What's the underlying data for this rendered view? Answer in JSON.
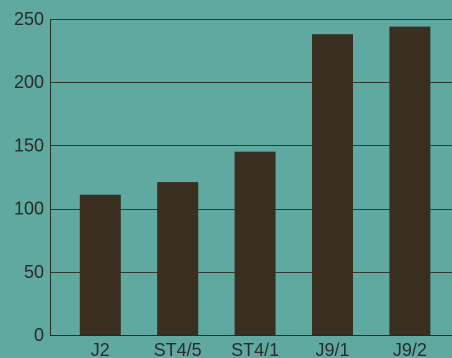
{
  "colors": {
    "background": "#5fa9a0",
    "bar": "#3a2e21",
    "grid": "#2f3a36",
    "axis": "#2b2b2b",
    "text": "#2b2b2b"
  },
  "chart_data": {
    "type": "bar",
    "title": "",
    "xlabel": "",
    "ylabel": "",
    "categories": [
      "J2",
      "ST4/5",
      "ST4/1",
      "J9/1",
      "J9/2"
    ],
    "values": [
      111,
      121,
      145,
      238,
      244
    ],
    "ylim": [
      0,
      250
    ],
    "yticks": [
      0,
      50,
      100,
      150,
      200,
      250
    ],
    "ytick_labels": [
      "0",
      "50",
      "100",
      "150",
      "200",
      "250"
    ],
    "grid": true,
    "legend": "none"
  }
}
